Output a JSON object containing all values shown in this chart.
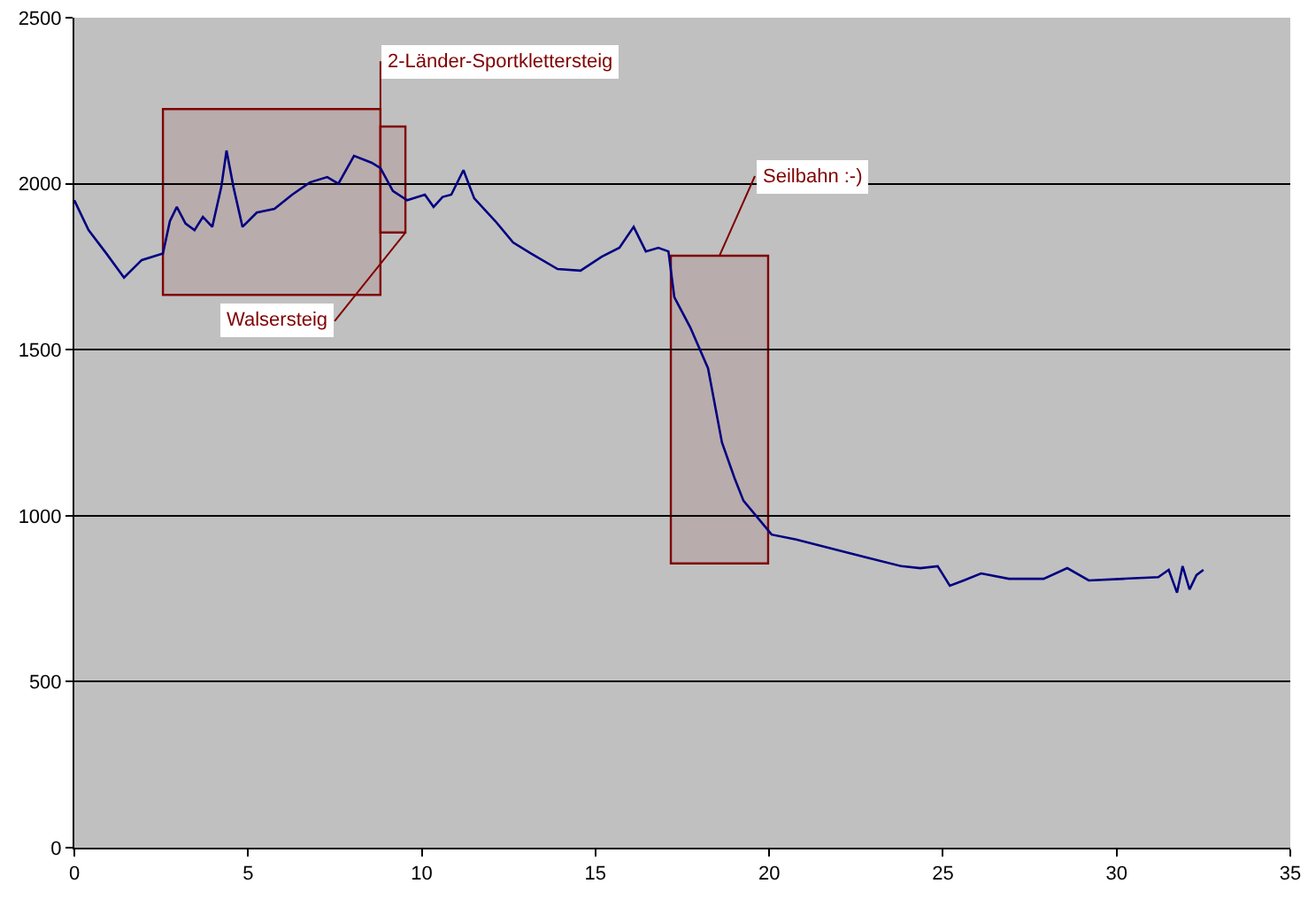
{
  "chart_data": {
    "type": "line",
    "x": [
      0,
      0.41,
      0.92,
      1.43,
      1.94,
      2.55,
      2.75,
      2.95,
      3.2,
      3.46,
      3.7,
      3.97,
      4.23,
      4.38,
      4.58,
      4.84,
      5.25,
      5.76,
      6.27,
      6.78,
      7.28,
      7.6,
      8.05,
      8.56,
      8.81,
      9.17,
      9.58,
      10.09,
      10.34,
      10.6,
      10.85,
      11.2,
      11.51,
      12.12,
      12.63,
      13.14,
      13.91,
      14.57,
      15.18,
      15.69,
      16.1,
      16.45,
      16.81,
      17.1,
      17.27,
      17.73,
      18.24,
      18.64,
      19.0,
      19.26,
      19.77,
      20.07,
      20.78,
      21.8,
      22.8,
      23.8,
      24.35,
      24.85,
      25.2,
      25.6,
      26.1,
      26.9,
      27.9,
      28.58,
      29.2,
      30.2,
      31.2,
      31.5,
      31.74,
      31.9,
      32.1,
      32.3,
      32.5
    ],
    "series": [
      {
        "color": "#000080",
        "values": [
          1950,
          1860,
          1790,
          1717,
          1770,
          1790,
          1887,
          1930,
          1880,
          1860,
          1900,
          1870,
          1990,
          2100,
          1990,
          1870,
          1913,
          1924,
          1967,
          2004,
          2020,
          2000,
          2084,
          2063,
          2047,
          1978,
          1950,
          1967,
          1930,
          1960,
          1967,
          2041,
          1956,
          1887,
          1823,
          1790,
          1743,
          1738,
          1780,
          1807,
          1870,
          1796,
          1807,
          1796,
          1658,
          1567,
          1444,
          1221,
          1114,
          1045,
          981,
          943,
          928,
          901,
          874,
          848,
          842,
          848,
          789,
          805,
          826,
          810,
          810,
          842,
          805,
          810,
          815,
          837,
          768,
          848,
          778,
          821,
          837
        ]
      }
    ],
    "xlim": [
      0,
      35
    ],
    "xticks": [
      0,
      5,
      10,
      15,
      20,
      25,
      30,
      35
    ],
    "ylim": [
      0,
      2500
    ],
    "yticks": [
      0,
      500,
      1000,
      1500,
      2000,
      2500
    ],
    "grid": "y",
    "marker": "none",
    "line_style": "solid",
    "bands": [
      {
        "axis": "x",
        "from": 2.55,
        "to": 8.81,
        "label": "2-Länder-Sportklettersteig",
        "color": "#800000"
      },
      {
        "axis": "x",
        "from": 8.81,
        "to": 9.53,
        "label": "Walsersteig",
        "color": "#800000"
      },
      {
        "axis": "x",
        "from": 17.17,
        "to": 19.97,
        "label": "Seilbahn :-)",
        "color": "#800000"
      }
    ]
  }
}
